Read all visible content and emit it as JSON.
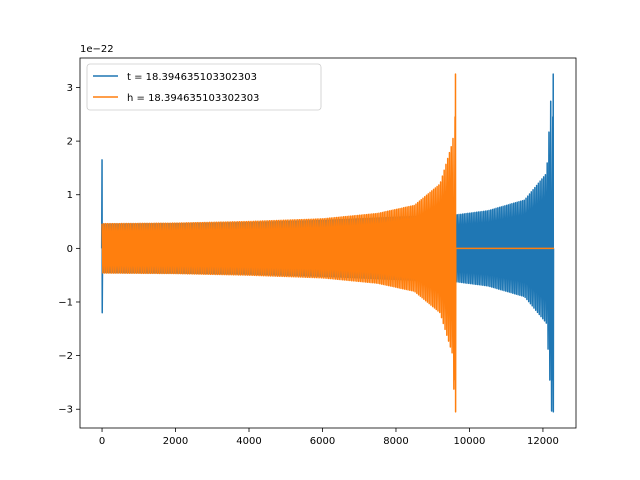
{
  "chart_data": {
    "type": "line",
    "title": "",
    "xlabel": "",
    "ylabel": "",
    "offset_text": "1e−22",
    "xlim": [
      -600,
      12900
    ],
    "ylim": [
      -3.35,
      3.55
    ],
    "xticks": [
      0,
      2000,
      4000,
      6000,
      8000,
      10000,
      12000
    ],
    "xtick_labels": [
      "0",
      "2000",
      "4000",
      "6000",
      "8000",
      "10000",
      "12000"
    ],
    "yticks": [
      -3,
      -2,
      -1,
      0,
      1,
      2,
      3
    ],
    "ytick_labels": [
      "−3",
      "−2",
      "−1",
      "0",
      "1",
      "2",
      "3"
    ],
    "grid": false,
    "legend_position": "top-left",
    "series": [
      {
        "name": "t = 18.394635103302303",
        "color": "#1f77b4",
        "description_points": {
          "start_spike": {
            "x": 0,
            "ymax": 1.65,
            "ymin": -1.2
          },
          "envelope": [
            {
              "x": 0,
              "amp": 0.45
            },
            {
              "x": 2000,
              "amp": 0.46
            },
            {
              "x": 4000,
              "amp": 0.48
            },
            {
              "x": 6000,
              "amp": 0.52
            },
            {
              "x": 8000,
              "amp": 0.58
            },
            {
              "x": 9600,
              "amp": 0.62
            },
            {
              "x": 10500,
              "amp": 0.7
            },
            {
              "x": 11500,
              "amp": 0.9
            },
            {
              "x": 12100,
              "amp": 1.4
            },
            {
              "x": 12250,
              "amp": 3.2
            }
          ],
          "merger": {
            "x": 12280,
            "ymax": 3.25,
            "ymin": -3.05
          },
          "end_x": 12300
        }
      },
      {
        "name": "h = 18.394635103302303",
        "color": "#ff7f0e",
        "description_points": {
          "envelope": [
            {
              "x": 0,
              "amp": 0.46
            },
            {
              "x": 2000,
              "amp": 0.47
            },
            {
              "x": 4000,
              "amp": 0.5
            },
            {
              "x": 6000,
              "amp": 0.55
            },
            {
              "x": 7500,
              "amp": 0.65
            },
            {
              "x": 8500,
              "amp": 0.8
            },
            {
              "x": 9200,
              "amp": 1.2
            },
            {
              "x": 9550,
              "amp": 2.0
            },
            {
              "x": 9600,
              "amp": 3.2
            }
          ],
          "merger": {
            "x": 9620,
            "ymax": 3.25,
            "ymin": -3.05
          },
          "flat_after": {
            "x_start": 9650,
            "x_end": 12300,
            "y": 0
          }
        }
      }
    ]
  }
}
